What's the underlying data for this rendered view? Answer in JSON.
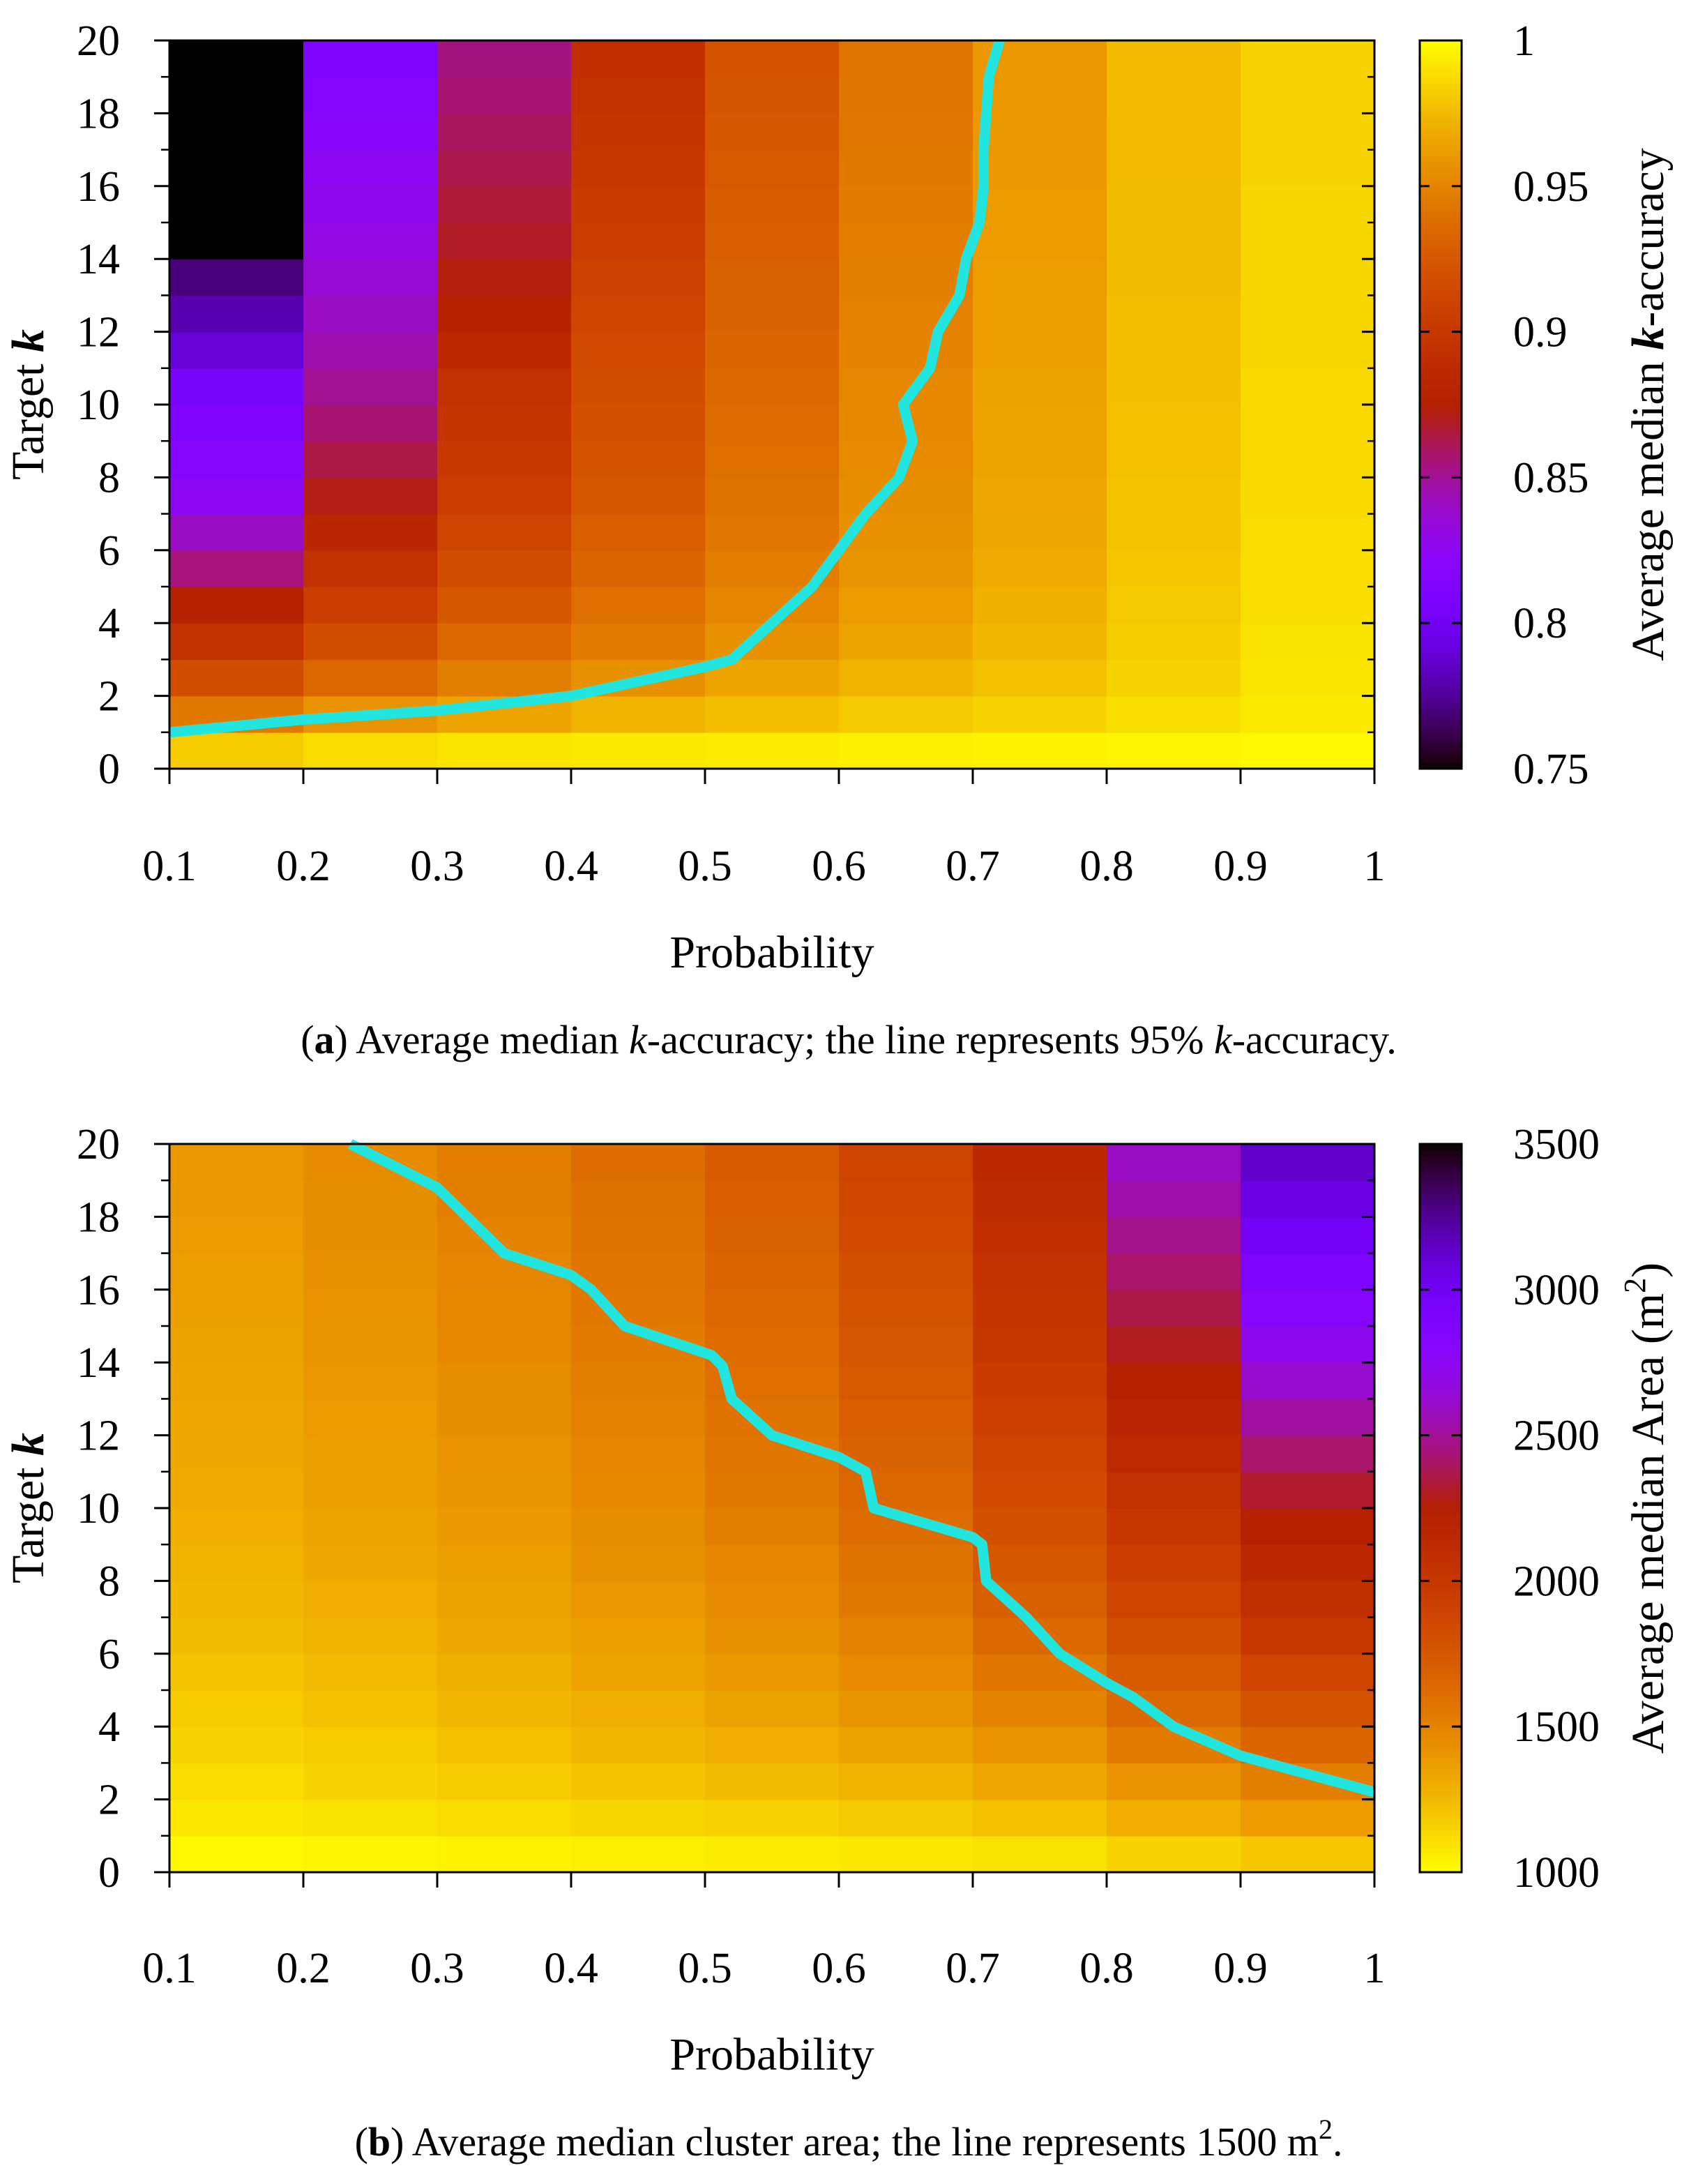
{
  "chart_data": [
    {
      "type": "heatmap",
      "panel_label": "a",
      "caption_parts": [
        ") Average median ",
        "k",
        "-accuracy; the line represents 95% ",
        "k",
        "-accuracy."
      ],
      "xlabel": "Probability",
      "ylabel_prefix": "Target ",
      "ylabel_var": "k",
      "colorbar_label_prefix": "Average median ",
      "colorbar_label_var": "k",
      "colorbar_label_suffix": "-accuracy",
      "x_columns": [
        0.1,
        0.2,
        0.3,
        0.4,
        0.5,
        0.6,
        0.7,
        0.8,
        0.9
      ],
      "xlim": [
        0.1,
        1
      ],
      "ylim": [
        0,
        20
      ],
      "x_ticks": [
        "0.1",
        "0.2",
        "0.3",
        "0.4",
        "0.5",
        "0.6",
        "0.7",
        "0.8",
        "0.9",
        "1"
      ],
      "y_ticks": [
        "0",
        "2",
        "4",
        "6",
        "8",
        "10",
        "12",
        "14",
        "16",
        "18",
        "20"
      ],
      "colorbar_ticks": [
        "0.75",
        "0.8",
        "0.85",
        "0.9",
        "0.95",
        "1"
      ],
      "colorbar_range": [
        0.75,
        1
      ],
      "colormap": "gnuplot-heat",
      "row_count": 20,
      "grid": [
        [
          0.982,
          0.988,
          0.991,
          0.993,
          0.994,
          0.995,
          0.996,
          0.997,
          0.998
        ],
        [
          0.945,
          0.958,
          0.966,
          0.972,
          0.977,
          0.981,
          0.985,
          0.989,
          0.993
        ],
        [
          0.918,
          0.935,
          0.948,
          0.957,
          0.966,
          0.972,
          0.978,
          0.985,
          0.991
        ],
        [
          0.895,
          0.918,
          0.935,
          0.946,
          0.957,
          0.966,
          0.974,
          0.983,
          0.99
        ],
        [
          0.875,
          0.905,
          0.925,
          0.939,
          0.951,
          0.962,
          0.971,
          0.981,
          0.989
        ],
        [
          0.855,
          0.893,
          0.917,
          0.933,
          0.947,
          0.959,
          0.969,
          0.98,
          0.988
        ],
        [
          0.84,
          0.882,
          0.911,
          0.929,
          0.944,
          0.957,
          0.968,
          0.979,
          0.988
        ],
        [
          0.825,
          0.872,
          0.906,
          0.925,
          0.941,
          0.955,
          0.967,
          0.979,
          0.987
        ],
        [
          0.818,
          0.864,
          0.901,
          0.922,
          0.939,
          0.954,
          0.966,
          0.978,
          0.987
        ],
        [
          0.812,
          0.857,
          0.897,
          0.92,
          0.938,
          0.953,
          0.966,
          0.978,
          0.987
        ],
        [
          0.805,
          0.851,
          0.893,
          0.918,
          0.936,
          0.952,
          0.965,
          0.977,
          0.987
        ],
        [
          0.79,
          0.845,
          0.885,
          0.915,
          0.934,
          0.95,
          0.964,
          0.977,
          0.986
        ],
        [
          0.78,
          0.84,
          0.878,
          0.912,
          0.932,
          0.949,
          0.963,
          0.977,
          0.986
        ],
        [
          0.77,
          0.836,
          0.873,
          0.909,
          0.931,
          0.948,
          0.963,
          0.976,
          0.986
        ],
        [
          0.75,
          0.832,
          0.869,
          0.906,
          0.929,
          0.947,
          0.962,
          0.976,
          0.986
        ],
        [
          0.75,
          0.828,
          0.866,
          0.903,
          0.928,
          0.946,
          0.962,
          0.976,
          0.986
        ],
        [
          0.75,
          0.824,
          0.863,
          0.9,
          0.926,
          0.945,
          0.961,
          0.975,
          0.985
        ],
        [
          0.75,
          0.82,
          0.86,
          0.897,
          0.925,
          0.944,
          0.961,
          0.975,
          0.985
        ],
        [
          0.75,
          0.816,
          0.857,
          0.894,
          0.923,
          0.943,
          0.96,
          0.975,
          0.985
        ],
        [
          0.75,
          0.812,
          0.854,
          0.891,
          0.922,
          0.942,
          0.96,
          0.975,
          0.985
        ]
      ],
      "contour_label": "95% k-accuracy",
      "contour": [
        [
          0.1,
          1.0
        ],
        [
          0.2,
          1.35
        ],
        [
          0.3,
          1.6
        ],
        [
          0.4,
          2.0
        ],
        [
          0.45,
          2.4
        ],
        [
          0.5,
          2.8
        ],
        [
          0.52,
          3.0
        ],
        [
          0.55,
          4.0
        ],
        [
          0.58,
          5.0
        ],
        [
          0.62,
          7.0
        ],
        [
          0.645,
          8.0
        ],
        [
          0.655,
          9.0
        ],
        [
          0.648,
          10.0
        ],
        [
          0.668,
          11.0
        ],
        [
          0.674,
          12.0
        ],
        [
          0.69,
          13.0
        ],
        [
          0.695,
          14.0
        ],
        [
          0.705,
          15.0
        ],
        [
          0.708,
          16.0
        ],
        [
          0.708,
          17.0
        ],
        [
          0.71,
          18.0
        ],
        [
          0.712,
          19.0
        ],
        [
          0.72,
          20.0
        ]
      ]
    },
    {
      "type": "heatmap",
      "panel_label": "b",
      "caption_parts": [
        ") Average median cluster area; the line represents 1500 m",
        "2",
        "."
      ],
      "xlabel": "Probability",
      "ylabel_prefix": "Target ",
      "ylabel_var": "k",
      "colorbar_label_prefix": "Average median Area (m",
      "colorbar_label_sup": "2",
      "colorbar_label_suffix": ")",
      "x_columns": [
        0.1,
        0.2,
        0.3,
        0.4,
        0.5,
        0.6,
        0.7,
        0.8,
        0.9
      ],
      "xlim": [
        0.1,
        1
      ],
      "ylim": [
        0,
        20
      ],
      "x_ticks": [
        "0.1",
        "0.2",
        "0.3",
        "0.4",
        "0.5",
        "0.6",
        "0.7",
        "0.8",
        "0.9",
        "1"
      ],
      "y_ticks": [
        "0",
        "2",
        "4",
        "6",
        "8",
        "10",
        "12",
        "14",
        "16",
        "18",
        "20"
      ],
      "colorbar_ticks": [
        "1000",
        "1500",
        "2000",
        "2500",
        "3000",
        "3500"
      ],
      "colorbar_range": [
        1000,
        3500
      ],
      "colormap": "gnuplot-heat-reversed",
      "row_count": 20,
      "grid": [
        [
          1020,
          1030,
          1040,
          1050,
          1060,
          1080,
          1100,
          1150,
          1200
        ],
        [
          1080,
          1100,
          1120,
          1140,
          1160,
          1190,
          1220,
          1300,
          1380
        ],
        [
          1120,
          1150,
          1180,
          1210,
          1240,
          1280,
          1330,
          1420,
          1520
        ],
        [
          1150,
          1180,
          1220,
          1260,
          1300,
          1350,
          1420,
          1540,
          1660
        ],
        [
          1180,
          1220,
          1260,
          1300,
          1350,
          1410,
          1500,
          1640,
          1780
        ],
        [
          1210,
          1250,
          1290,
          1340,
          1390,
          1460,
          1570,
          1730,
          1890
        ],
        [
          1240,
          1280,
          1320,
          1370,
          1430,
          1510,
          1640,
          1810,
          1990
        ],
        [
          1260,
          1300,
          1350,
          1400,
          1460,
          1550,
          1700,
          1880,
          2080
        ],
        [
          1280,
          1320,
          1370,
          1430,
          1490,
          1590,
          1750,
          1950,
          2160
        ],
        [
          1300,
          1340,
          1390,
          1450,
          1520,
          1620,
          1800,
          2010,
          2240
        ],
        [
          1310,
          1360,
          1410,
          1470,
          1550,
          1650,
          1840,
          2070,
          2320
        ],
        [
          1320,
          1370,
          1420,
          1490,
          1570,
          1680,
          1880,
          2130,
          2420
        ],
        [
          1330,
          1380,
          1440,
          1510,
          1590,
          1710,
          1920,
          2190,
          2520
        ],
        [
          1340,
          1400,
          1450,
          1520,
          1610,
          1740,
          1960,
          2240,
          2620
        ],
        [
          1350,
          1410,
          1470,
          1540,
          1630,
          1760,
          2000,
          2300,
          2720
        ],
        [
          1360,
          1420,
          1480,
          1560,
          1650,
          1790,
          2030,
          2360,
          2810
        ],
        [
          1370,
          1430,
          1490,
          1570,
          1670,
          1810,
          2060,
          2420,
          2900
        ],
        [
          1380,
          1440,
          1500,
          1590,
          1690,
          1840,
          2090,
          2480,
          2980
        ],
        [
          1390,
          1450,
          1520,
          1600,
          1710,
          1860,
          2120,
          2540,
          3060
        ],
        [
          1400,
          1460,
          1530,
          1620,
          1730,
          1890,
          2150,
          2600,
          3140
        ]
      ],
      "contour_label": "1500 m2",
      "contour": [
        [
          0.235,
          20.0
        ],
        [
          0.3,
          18.8
        ],
        [
          0.35,
          17.0
        ],
        [
          0.4,
          16.4
        ],
        [
          0.415,
          16.0
        ],
        [
          0.44,
          15.0
        ],
        [
          0.505,
          14.2
        ],
        [
          0.513,
          13.9
        ],
        [
          0.52,
          13.0
        ],
        [
          0.55,
          12.0
        ],
        [
          0.6,
          11.4
        ],
        [
          0.62,
          11.0
        ],
        [
          0.626,
          10.0
        ],
        [
          0.7,
          9.2
        ],
        [
          0.707,
          9.0
        ],
        [
          0.71,
          8.0
        ],
        [
          0.74,
          7.0
        ],
        [
          0.765,
          6.0
        ],
        [
          0.8,
          5.2
        ],
        [
          0.82,
          4.8
        ],
        [
          0.85,
          4.0
        ],
        [
          0.9,
          3.2
        ],
        [
          0.95,
          2.7
        ],
        [
          1.0,
          2.2
        ]
      ]
    }
  ]
}
